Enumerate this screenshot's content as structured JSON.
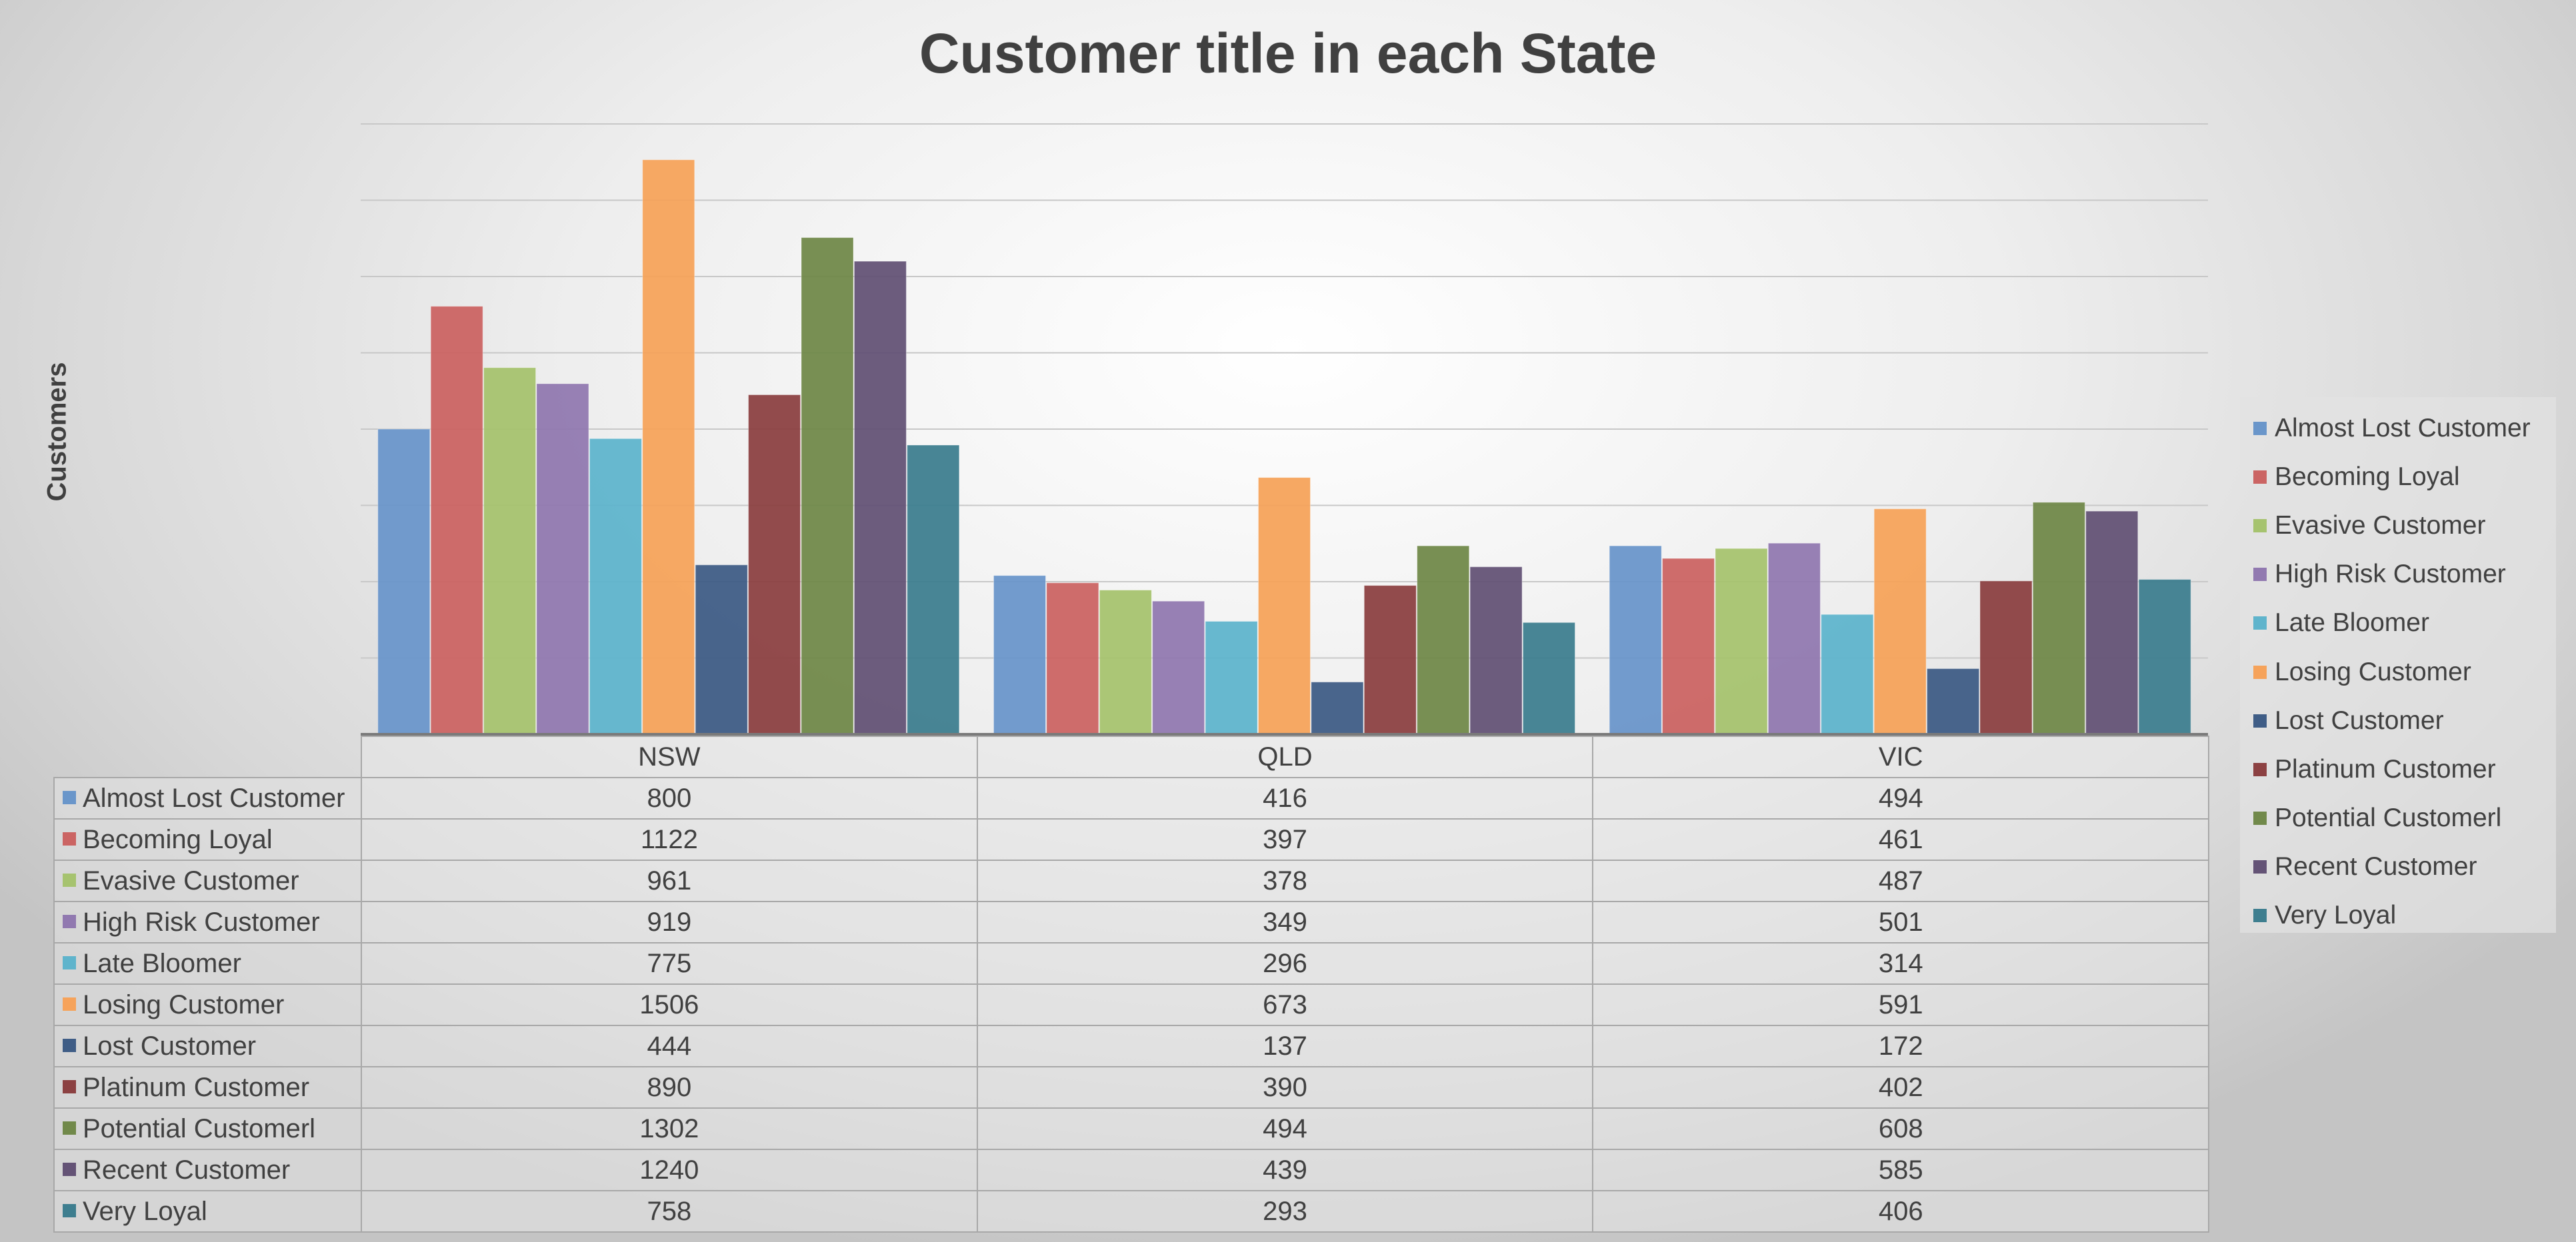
{
  "chart_data": {
    "type": "bar",
    "title": "Customer title in each State",
    "xlabel": "",
    "ylabel": "Customers",
    "categories": [
      "NSW",
      "QLD",
      "VIC"
    ],
    "ylim": [
      0,
      1600
    ],
    "grid": true,
    "legend_position": "right",
    "data_table": true,
    "series": [
      {
        "name": "Almost Lost Customer",
        "color": "#6a96ca",
        "values": [
          800,
          416,
          494
        ]
      },
      {
        "name": "Becoming Loyal",
        "color": "#cb6463",
        "values": [
          1122,
          397,
          461
        ]
      },
      {
        "name": "Evasive Customer",
        "color": "#a6c36f",
        "values": [
          961,
          378,
          487
        ]
      },
      {
        "name": "High Risk Customer",
        "color": "#9179b0",
        "values": [
          919,
          349,
          501
        ]
      },
      {
        "name": "Late Bloomer",
        "color": "#5fb4cc",
        "values": [
          775,
          296,
          314
        ]
      },
      {
        "name": "Losing Customer",
        "color": "#f6a35b",
        "values": [
          1506,
          673,
          591
        ]
      },
      {
        "name": "Lost Customer",
        "color": "#3f5d86",
        "values": [
          444,
          137,
          172
        ]
      },
      {
        "name": "Platinum Customer",
        "color": "#8c4142",
        "values": [
          890,
          390,
          402
        ]
      },
      {
        "name": "Potential Customerl",
        "color": "#71894a",
        "values": [
          1302,
          494,
          608
        ]
      },
      {
        "name": "Recent Customer",
        "color": "#645376",
        "values": [
          1240,
          439,
          585
        ]
      },
      {
        "name": "Very Loyal",
        "color": "#3e7e8f",
        "values": [
          758,
          293,
          406
        ]
      }
    ]
  }
}
